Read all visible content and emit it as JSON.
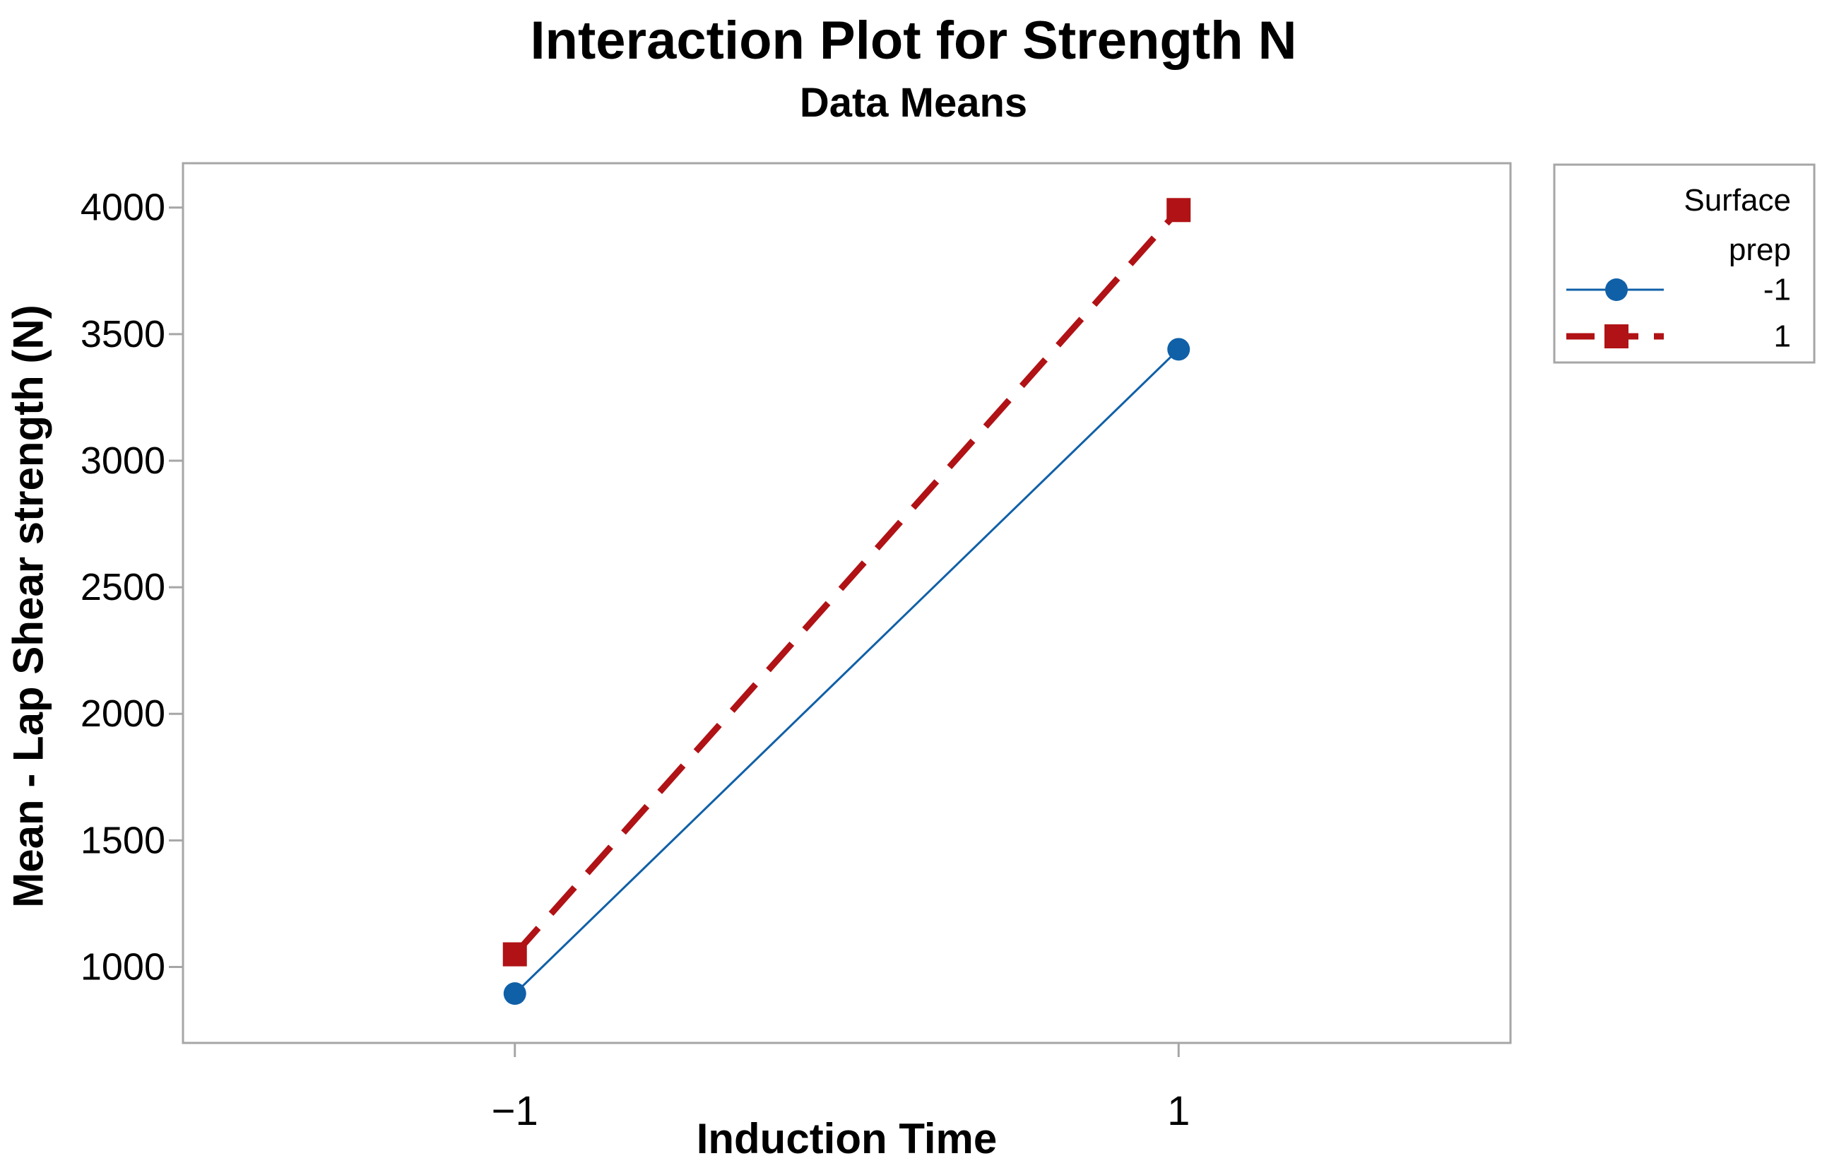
{
  "chart_data": {
    "type": "line",
    "title": "Interaction Plot for Strength N",
    "subtitle": "Data Means",
    "xlabel": "Induction Time",
    "ylabel": "Mean - Lap Shear strength (N)",
    "x_categories": [
      "−1",
      "1"
    ],
    "y_ticks": [
      "1000",
      "1500",
      "2000",
      "2500",
      "3000",
      "3500",
      "4000"
    ],
    "ylim": [
      700,
      4175
    ],
    "grid": false,
    "legend": {
      "position": "outside-top-right",
      "title_lines": [
        "Surface",
        "prep"
      ],
      "entries": [
        {
          "label": "-1",
          "color": "#1060A8",
          "marker": "circle",
          "line_style": "solid"
        },
        {
          "label": "1",
          "color": "#B01215",
          "marker": "square",
          "line_style": "dashed"
        }
      ]
    },
    "series": [
      {
        "name": "-1",
        "color": "#1060A8",
        "marker": "circle",
        "line_style": "solid",
        "x": [
          -1,
          1
        ],
        "values": [
          895,
          3440
        ]
      },
      {
        "name": "1",
        "color": "#B01215",
        "marker": "square",
        "line_style": "dashed",
        "x": [
          -1,
          1
        ],
        "values": [
          1050,
          3990
        ]
      }
    ],
    "colors": {
      "plot_border": "#A6A6A6",
      "tick": "#A6A6A6",
      "text": "#000000",
      "background": "#FFFFFF"
    }
  }
}
